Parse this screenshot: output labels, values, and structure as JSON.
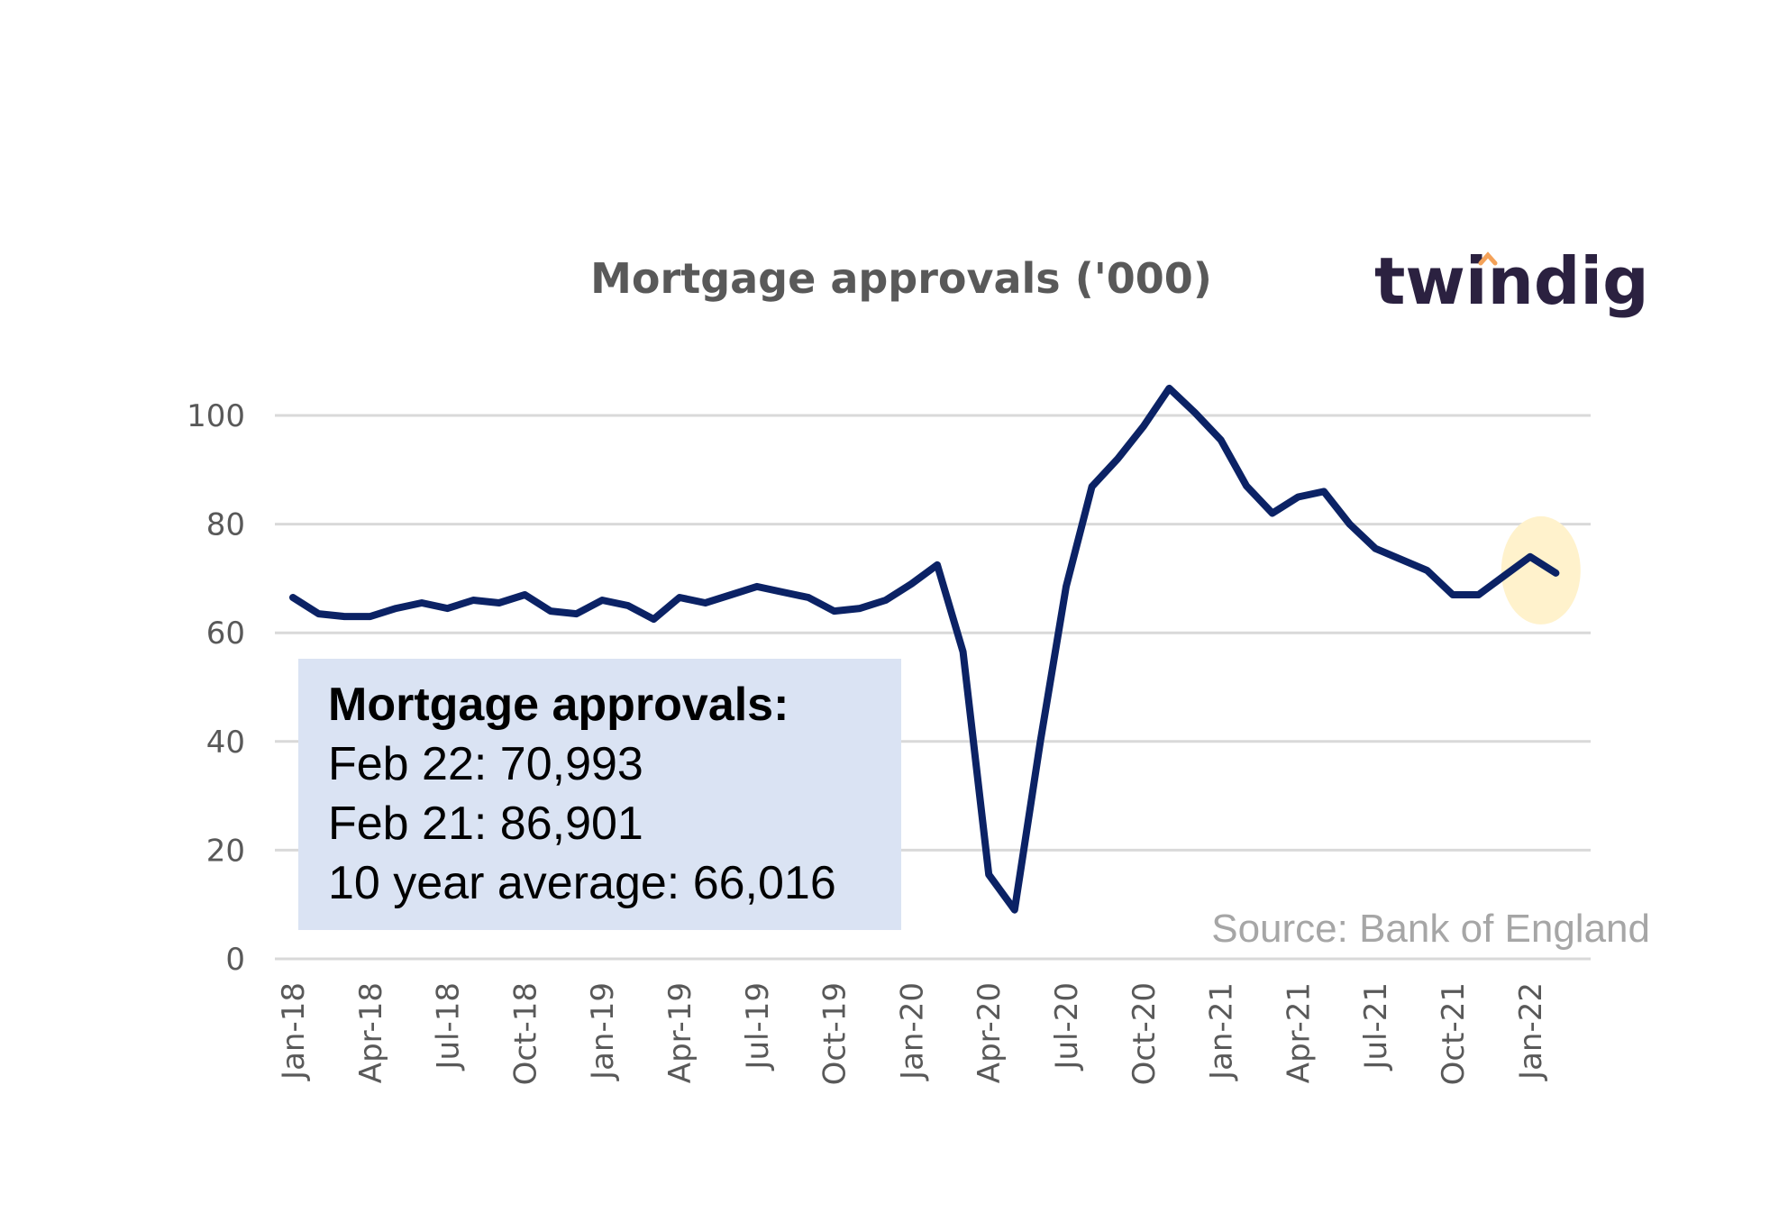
{
  "chart_data": {
    "type": "line",
    "title": "Mortgage approvals ('000)",
    "ylim": [
      0,
      100
    ],
    "yticks": [
      0,
      20,
      40,
      60,
      80,
      100
    ],
    "grid": true,
    "x_tick_labels": [
      "Jan-18",
      "Apr-18",
      "Jul-18",
      "Oct-18",
      "Jan-19",
      "Apr-19",
      "Jul-19",
      "Oct-19",
      "Jan-20",
      "Apr-20",
      "Jul-20",
      "Oct-20",
      "Jan-21",
      "Apr-21",
      "Jul-21",
      "Oct-21",
      "Jan-22"
    ],
    "series": [
      {
        "color": "#0b2265",
        "x": [
          "Jan-18",
          "Feb-18",
          "Mar-18",
          "Apr-18",
          "May-18",
          "Jun-18",
          "Jul-18",
          "Aug-18",
          "Sep-18",
          "Oct-18",
          "Nov-18",
          "Dec-18",
          "Jan-19",
          "Feb-19",
          "Mar-19",
          "Apr-19",
          "May-19",
          "Jun-19",
          "Jul-19",
          "Aug-19",
          "Sep-19",
          "Oct-19",
          "Nov-19",
          "Dec-19",
          "Jan-20",
          "Feb-20",
          "Mar-20",
          "Apr-20",
          "May-20",
          "Jun-20",
          "Jul-20",
          "Aug-20",
          "Sep-20",
          "Oct-20",
          "Nov-20",
          "Dec-20",
          "Jan-21",
          "Feb-21",
          "Mar-21",
          "Apr-21",
          "May-21",
          "Jun-21",
          "Jul-21",
          "Aug-21",
          "Sep-21",
          "Oct-21",
          "Nov-21",
          "Dec-21",
          "Jan-22",
          "Feb-22"
        ],
        "values": [
          66.5,
          63.5,
          63,
          63,
          64.5,
          65.5,
          64.5,
          66,
          65.5,
          67,
          64,
          63.5,
          66,
          65,
          62.5,
          66.5,
          65.5,
          67,
          68.5,
          67.5,
          66.5,
          64,
          64.5,
          66,
          69,
          72.5,
          56.5,
          15.5,
          9,
          40,
          68.5,
          86.9,
          92,
          98,
          105,
          100.5,
          95.5,
          87,
          82,
          85,
          86,
          80,
          75.5,
          73.5,
          71.5,
          67,
          67,
          70.5,
          74,
          70.993
        ]
      }
    ],
    "highlight_last_point": true,
    "highlight_color": "#fff2cc"
  },
  "logo_text": "twindig",
  "logo_accent_color": "#f4a259",
  "source_text": "Source: Bank of England",
  "info_box": {
    "heading": "Mortgage approvals:",
    "lines": [
      "Feb 22: 70,993",
      "Feb 21: 86,901",
      "10 year average: 66,016"
    ]
  }
}
